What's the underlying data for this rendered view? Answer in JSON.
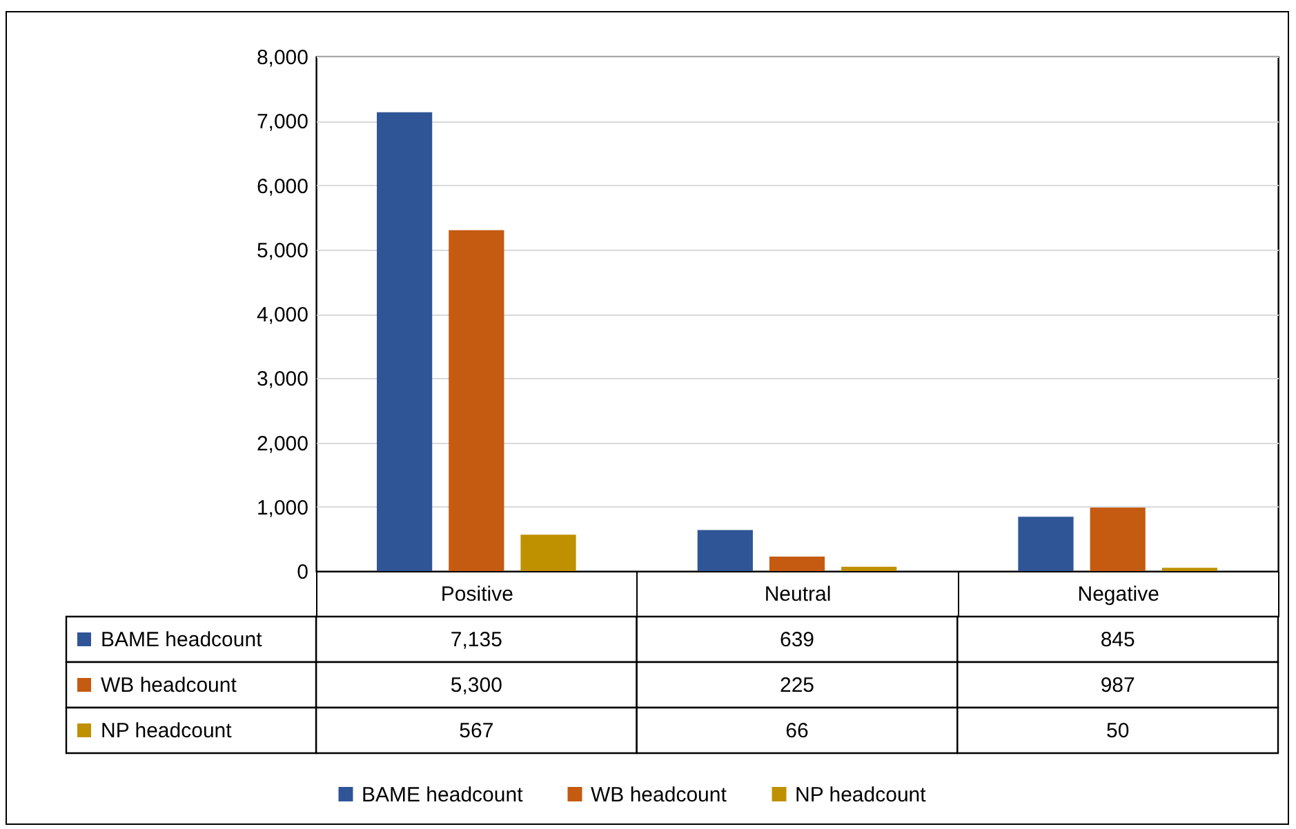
{
  "chart_data": {
    "type": "bar",
    "categories": [
      "Positive",
      "Neutral",
      "Negative"
    ],
    "series": [
      {
        "name": "BAME headcount",
        "color": "#2f5597",
        "values": [
          7135,
          639,
          845
        ],
        "value_labels": [
          "7,135",
          "639",
          "845"
        ]
      },
      {
        "name": "WB headcount",
        "color": "#c55a11",
        "values": [
          5300,
          225,
          987
        ],
        "value_labels": [
          "5,300",
          "225",
          "987"
        ]
      },
      {
        "name": "NP headcount",
        "color": "#bf9000",
        "values": [
          567,
          66,
          50
        ],
        "value_labels": [
          "567",
          "66",
          "50"
        ]
      }
    ],
    "ylim": [
      0,
      8000
    ],
    "yticks": [
      0,
      {
        "value": 1000,
        "label": "1,000"
      },
      {
        "value": 2000,
        "label": "2,000"
      },
      {
        "value": 3000,
        "label": "3,000"
      },
      {
        "value": 4000,
        "label": "4,000"
      },
      {
        "value": 5000,
        "label": "5,000"
      },
      {
        "value": 6000,
        "label": "6,000"
      },
      {
        "value": 7000,
        "label": "7,000"
      },
      {
        "value": 8000,
        "label": "8,000"
      }
    ],
    "grid": "y",
    "legend": "bottom"
  }
}
